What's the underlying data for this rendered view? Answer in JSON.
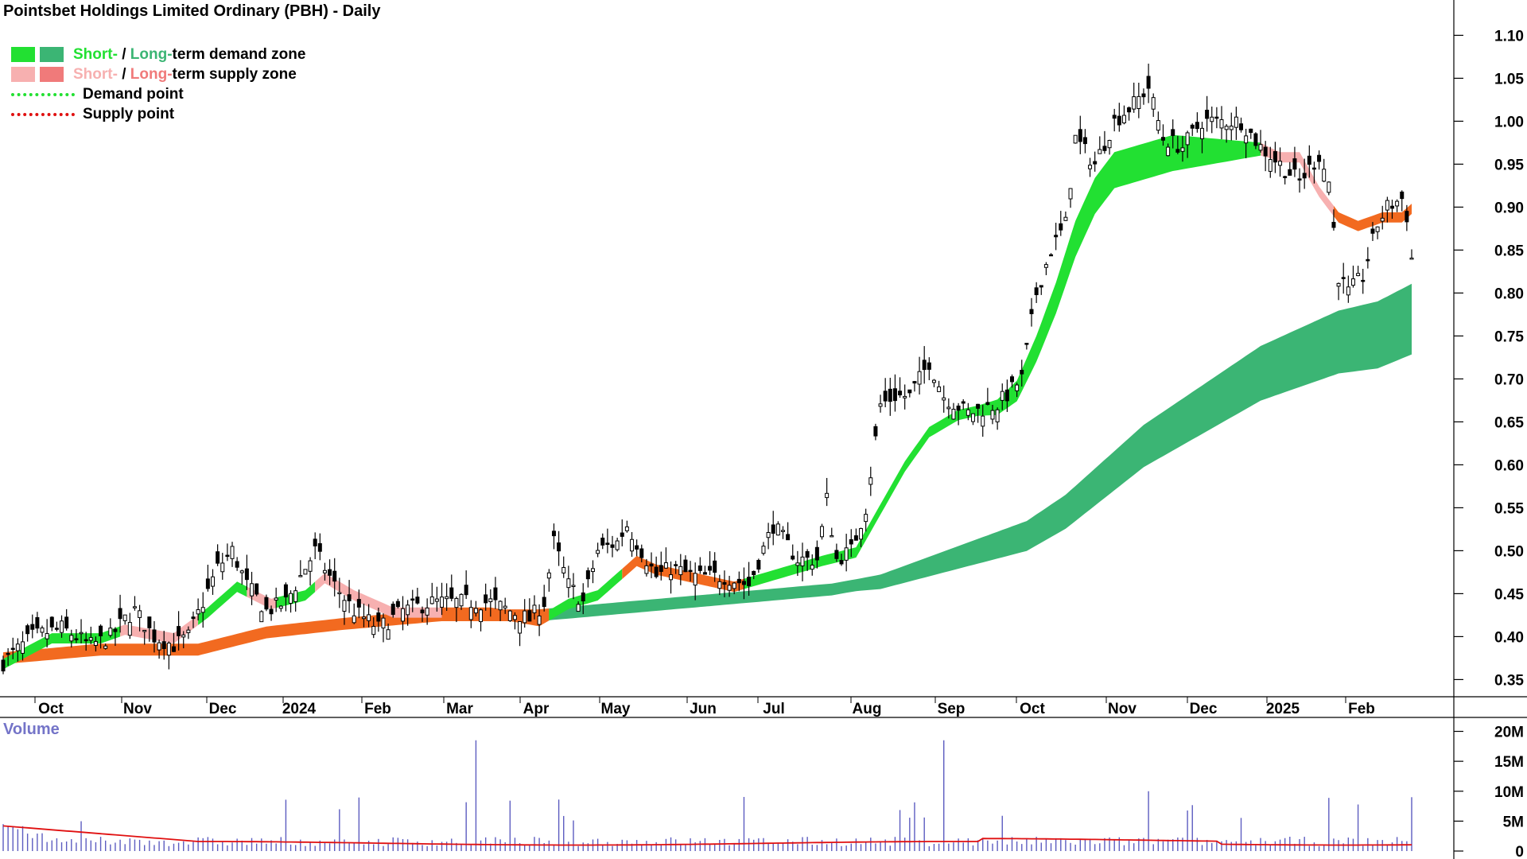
{
  "title": "Pointsbet Holdings Limited Ordinary (PBH) - Daily",
  "legend": {
    "demand_zone": {
      "short": "Short-",
      "sep": " / ",
      "long": "Long-",
      "rest": "term demand zone"
    },
    "supply_zone": {
      "short": "Short-",
      "sep": " / ",
      "long": "Long-",
      "rest": "term supply zone"
    },
    "demand_point": "Demand point",
    "supply_point": "Supply point"
  },
  "colors": {
    "short_demand": "#22e032",
    "long_demand": "#3bb574",
    "short_supply": "#f7b0b0",
    "long_supply": "#f07a7a",
    "orange_band": "#f26a20",
    "volume_bar": "#5c5cc0",
    "volume_ma": "#e01010",
    "demand_point": "#22e032",
    "supply_point": "#e01010"
  },
  "volume_label": "Volume",
  "chart_data": {
    "type": "candlestick",
    "title": "Pointsbet Holdings Limited Ordinary (PBH) - Daily",
    "price_axis": {
      "ticks": [
        0.35,
        0.4,
        0.45,
        0.5,
        0.55,
        0.6,
        0.65,
        0.7,
        0.75,
        0.8,
        0.85,
        0.9,
        0.95,
        1.0,
        1.05,
        1.1
      ],
      "labels": [
        "0.35",
        "0.40",
        "0.45",
        "0.50",
        "0.55",
        "0.60",
        "0.65",
        "0.70",
        "0.75",
        "0.80",
        "0.85",
        "0.90",
        "0.95",
        "1.00",
        "1.05",
        "1.10"
      ],
      "range": [
        0.33,
        1.13
      ]
    },
    "volume_axis": {
      "ticks": [
        0,
        5,
        10,
        15,
        20
      ],
      "labels": [
        "0",
        "5M",
        "10M",
        "15M",
        "20M"
      ],
      "range": [
        0,
        21
      ]
    },
    "months": [
      "Oct",
      "Nov",
      "Dec",
      "2024",
      "Feb",
      "Mar",
      "Apr",
      "May",
      "Jun",
      "Jul",
      "Aug",
      "Sep",
      "Oct",
      "Nov",
      "Dec",
      "2025",
      "Feb"
    ],
    "price_path": [
      [
        0,
        0.37
      ],
      [
        6,
        0.4
      ],
      [
        12,
        0.41
      ],
      [
        18,
        0.39
      ],
      [
        22,
        0.4
      ],
      [
        25,
        0.42
      ],
      [
        27,
        0.43
      ],
      [
        31,
        0.4
      ],
      [
        35,
        0.39
      ],
      [
        38,
        0.4
      ],
      [
        44,
        0.48
      ],
      [
        47,
        0.5
      ],
      [
        50,
        0.46
      ],
      [
        54,
        0.43
      ],
      [
        58,
        0.44
      ],
      [
        62,
        0.48
      ],
      [
        64,
        0.5
      ],
      [
        68,
        0.46
      ],
      [
        72,
        0.43
      ],
      [
        77,
        0.41
      ],
      [
        82,
        0.43
      ],
      [
        88,
        0.44
      ],
      [
        94,
        0.44
      ],
      [
        100,
        0.44
      ],
      [
        104,
        0.43
      ],
      [
        108,
        0.42
      ],
      [
        111,
        0.44
      ],
      [
        113,
        0.51
      ],
      [
        116,
        0.46
      ],
      [
        119,
        0.44
      ],
      [
        122,
        0.5
      ],
      [
        126,
        0.51
      ],
      [
        128,
        0.53
      ],
      [
        131,
        0.5
      ],
      [
        134,
        0.47
      ],
      [
        137,
        0.48
      ],
      [
        142,
        0.47
      ],
      [
        148,
        0.47
      ],
      [
        153,
        0.46
      ],
      [
        158,
        0.53
      ],
      [
        163,
        0.49
      ],
      [
        167,
        0.49
      ],
      [
        169,
        0.56
      ],
      [
        171,
        0.49
      ],
      [
        174,
        0.5
      ],
      [
        177,
        0.55
      ],
      [
        180,
        0.67
      ],
      [
        183,
        0.68
      ],
      [
        186,
        0.68
      ],
      [
        190,
        0.72
      ],
      [
        193,
        0.68
      ],
      [
        198,
        0.66
      ],
      [
        204,
        0.67
      ],
      [
        209,
        0.7
      ],
      [
        212,
        0.8
      ],
      [
        215,
        0.85
      ],
      [
        218,
        0.88
      ],
      [
        220,
        0.98
      ],
      [
        224,
        0.95
      ],
      [
        228,
        1.0
      ],
      [
        232,
        1.02
      ],
      [
        235,
        1.04
      ],
      [
        238,
        0.98
      ],
      [
        242,
        0.97
      ],
      [
        246,
        1.0
      ],
      [
        250,
        1.0
      ],
      [
        254,
        1.0
      ],
      [
        258,
        0.97
      ],
      [
        262,
        0.95
      ],
      [
        266,
        0.93
      ],
      [
        270,
        0.96
      ],
      [
        272,
        0.93
      ],
      [
        274,
        0.82
      ],
      [
        276,
        0.8
      ],
      [
        279,
        0.82
      ],
      [
        282,
        0.88
      ],
      [
        284,
        0.9
      ],
      [
        287,
        0.91
      ],
      [
        288,
        0.89
      ],
      [
        289,
        0.84
      ]
    ],
    "short_ma": [
      [
        0,
        0.37
      ],
      [
        10,
        0.4
      ],
      [
        20,
        0.4
      ],
      [
        25,
        0.41
      ],
      [
        35,
        0.4
      ],
      [
        42,
        0.43
      ],
      [
        48,
        0.46
      ],
      [
        55,
        0.44
      ],
      [
        62,
        0.45
      ],
      [
        66,
        0.47
      ],
      [
        72,
        0.45
      ],
      [
        80,
        0.43
      ],
      [
        90,
        0.43
      ],
      [
        100,
        0.43
      ],
      [
        110,
        0.42
      ],
      [
        116,
        0.44
      ],
      [
        122,
        0.45
      ],
      [
        126,
        0.47
      ],
      [
        130,
        0.49
      ],
      [
        134,
        0.48
      ],
      [
        142,
        0.47
      ],
      [
        150,
        0.46
      ],
      [
        156,
        0.47
      ],
      [
        162,
        0.48
      ],
      [
        168,
        0.49
      ],
      [
        175,
        0.5
      ],
      [
        180,
        0.55
      ],
      [
        185,
        0.6
      ],
      [
        190,
        0.64
      ],
      [
        196,
        0.66
      ],
      [
        204,
        0.67
      ],
      [
        208,
        0.69
      ],
      [
        212,
        0.74
      ],
      [
        216,
        0.8
      ],
      [
        220,
        0.87
      ],
      [
        224,
        0.92
      ],
      [
        228,
        0.95
      ],
      [
        234,
        0.96
      ],
      [
        240,
        0.97
      ],
      [
        246,
        0.97
      ],
      [
        252,
        0.97
      ],
      [
        258,
        0.97
      ],
      [
        262,
        0.96
      ],
      [
        266,
        0.96
      ],
      [
        270,
        0.92
      ],
      [
        274,
        0.89
      ],
      [
        278,
        0.88
      ],
      [
        283,
        0.89
      ],
      [
        287,
        0.89
      ],
      [
        289,
        0.9
      ]
    ],
    "long_ma": [
      [
        0,
        0.38
      ],
      [
        20,
        0.39
      ],
      [
        40,
        0.39
      ],
      [
        54,
        0.41
      ],
      [
        70,
        0.42
      ],
      [
        90,
        0.43
      ],
      [
        110,
        0.43
      ],
      [
        130,
        0.44
      ],
      [
        150,
        0.45
      ],
      [
        170,
        0.46
      ],
      [
        180,
        0.47
      ],
      [
        190,
        0.49
      ],
      [
        200,
        0.51
      ],
      [
        210,
        0.53
      ],
      [
        218,
        0.56
      ],
      [
        226,
        0.6
      ],
      [
        234,
        0.64
      ],
      [
        242,
        0.67
      ],
      [
        250,
        0.7
      ],
      [
        258,
        0.73
      ],
      [
        266,
        0.75
      ],
      [
        274,
        0.77
      ],
      [
        282,
        0.78
      ],
      [
        289,
        0.8
      ]
    ]
  }
}
